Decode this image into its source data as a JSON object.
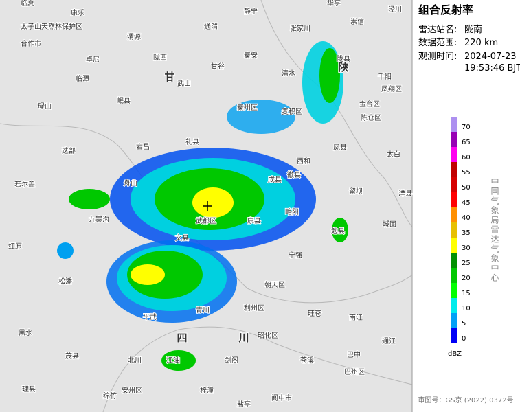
{
  "panel": {
    "title": "组合反射率",
    "station_label": "雷达站名:",
    "station": "陇南",
    "range_label": "数据范围:",
    "range": "220 km",
    "time_label": "观测时间:",
    "time_date": "2024-07-23",
    "time_clock": "19:53:46 BJT"
  },
  "legend": {
    "values": [
      0,
      5,
      10,
      15,
      20,
      25,
      30,
      35,
      40,
      45,
      50,
      55,
      60,
      65,
      70
    ],
    "colors": [
      "#0000f6",
      "#01a0f6",
      "#00ecec",
      "#01ff00",
      "#00c800",
      "#019000",
      "#ffff00",
      "#e7c000",
      "#ff9000",
      "#ff0000",
      "#d60000",
      "#c00000",
      "#ff00f0",
      "#9600b4",
      "#ad90f0"
    ],
    "unit": "dBZ"
  },
  "source": "中国气象局雷达气象中心",
  "approval": "审图号：GS京 (2022) 0372号",
  "map": {
    "labels": [
      "临夏",
      "康乐",
      "静宁",
      "张家川",
      "华亭",
      "泾川",
      "崇信",
      "太子山天然林保护区",
      "合作市",
      "卓尼",
      "临潭",
      "碌曲",
      "渭源",
      "陇西",
      "通渭",
      "甘谷",
      "武山",
      "秦安",
      "清水",
      "陇县",
      "千阳",
      "麦积区",
      "秦州区",
      "凤翔区",
      "金台区",
      "陈仓区",
      "岷县",
      "宕昌",
      "礼县",
      "西和",
      "凤县",
      "太白",
      "舟曲",
      "迭部",
      "若尔盖",
      "九寨沟",
      "武都区",
      "康县",
      "成县",
      "徽县",
      "略阳",
      "勉县",
      "城固",
      "洋县",
      "留坝",
      "宁强",
      "文县",
      "红原",
      "松潘",
      "平武",
      "青川",
      "朝天区",
      "利州区",
      "旺苍",
      "南江",
      "黑水",
      "茂县",
      "北川",
      "剑阁",
      "江油",
      "昭化区",
      "苍溪",
      "巴中",
      "通江",
      "理县",
      "安州区",
      "梓潼",
      "阆中市",
      "盐亭",
      "绵竹",
      "巴州区",
      "甘",
      "陕",
      "四",
      "川"
    ]
  }
}
